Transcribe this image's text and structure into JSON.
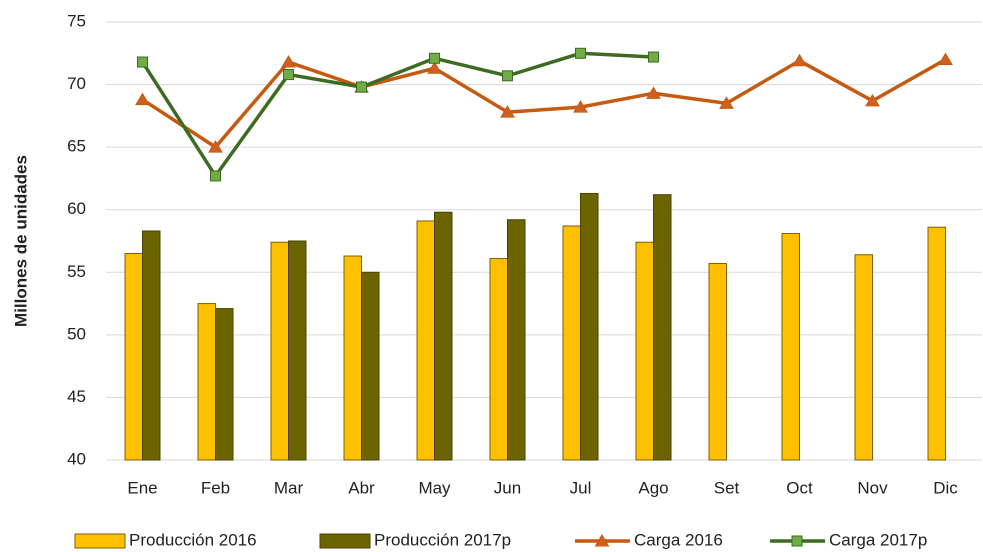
{
  "chart_data": {
    "type": "bar",
    "y_label": "Millones de unidades",
    "categories": [
      "Ene",
      "Feb",
      "Mar",
      "Abr",
      "May",
      "Jun",
      "Jul",
      "Ago",
      "Set",
      "Oct",
      "Nov",
      "Dic"
    ],
    "series": [
      {
        "name": "Producción 2016",
        "type": "bar",
        "color": "#ffc000",
        "stroke": "#7f6000",
        "values": [
          56.5,
          52.5,
          57.4,
          56.3,
          59.1,
          56.1,
          58.7,
          57.4,
          55.7,
          58.1,
          56.4,
          58.6
        ]
      },
      {
        "name": "Producción 2017p",
        "type": "bar",
        "color": "#6b6400",
        "stroke": "#4a4400",
        "values": [
          58.3,
          52.1,
          57.5,
          55.0,
          59.8,
          59.2,
          61.3,
          61.2,
          null,
          null,
          null,
          null
        ]
      },
      {
        "name": "Carga 2016",
        "type": "line",
        "marker": "triangle",
        "color": "#c55a11",
        "marker_color": "#d06020",
        "values": [
          68.8,
          65.0,
          71.8,
          69.8,
          71.3,
          67.8,
          68.2,
          69.3,
          68.5,
          71.9,
          68.7,
          72.0
        ]
      },
      {
        "name": "Carga 2017p",
        "type": "line",
        "marker": "square",
        "color": "#3d6b21",
        "marker_color": "#70ad47",
        "values": [
          71.8,
          62.7,
          70.8,
          69.8,
          72.1,
          70.7,
          72.5,
          72.2,
          null,
          null,
          null,
          null
        ]
      }
    ],
    "ylim": [
      40,
      75
    ],
    "yticks": [
      40,
      45,
      50,
      55,
      60,
      65,
      70,
      75
    ],
    "grid": true,
    "legend": "bottom"
  }
}
